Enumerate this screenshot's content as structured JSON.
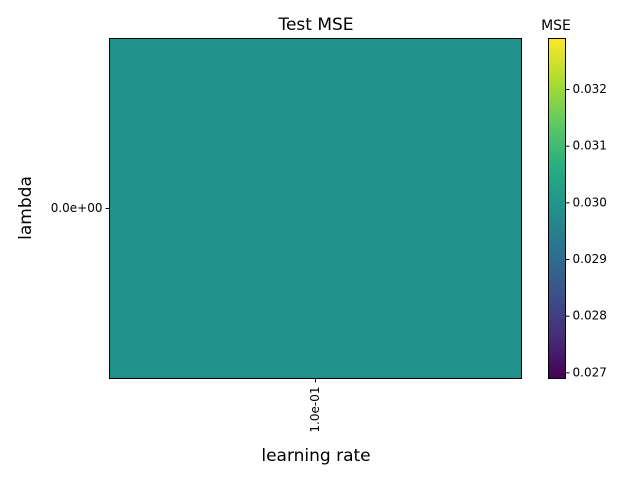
{
  "chart_data": {
    "type": "heatmap",
    "title": "Test MSE",
    "xlabel": "learning rate",
    "ylabel": "lambda",
    "x_categories": [
      "1.0e-01"
    ],
    "y_categories": [
      "0.0e+00"
    ],
    "values": [
      [
        0.0299
      ]
    ],
    "colormap": "viridis",
    "colorbar": {
      "label": "MSE",
      "range": [
        0.0269,
        0.0329
      ],
      "ticks": [
        "0.027",
        "0.028",
        "0.029",
        "0.030",
        "0.031",
        "0.032"
      ],
      "tick_values": [
        0.027,
        0.028,
        0.029,
        0.03,
        0.031,
        0.032
      ]
    },
    "cell_color": "#21918c",
    "grid": false
  }
}
